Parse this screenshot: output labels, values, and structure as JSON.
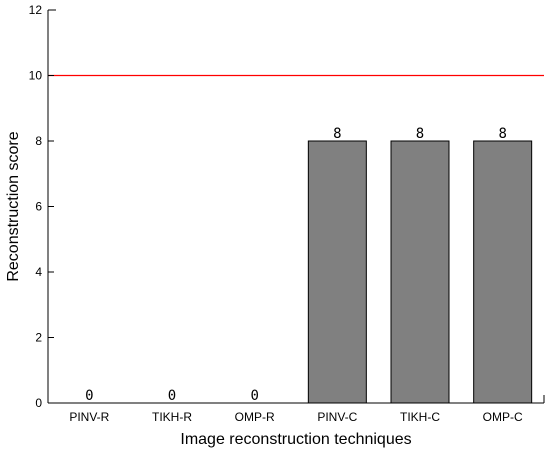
{
  "chart_data": {
    "type": "bar",
    "title": "",
    "xlabel": "Image reconstruction techniques",
    "ylabel": "Reconstruction score",
    "categories": [
      "PINV-R",
      "TIKH-R",
      "OMP-R",
      "PINV-C",
      "TIKH-C",
      "OMP-C"
    ],
    "values": [
      0,
      0,
      0,
      8,
      8,
      8
    ],
    "data_labels": [
      "0",
      "0",
      "0",
      "8",
      "8",
      "8"
    ],
    "ylim": [
      0,
      12
    ],
    "yticks": [
      0,
      2,
      4,
      6,
      8,
      10,
      12
    ],
    "reference_line": {
      "y": 10,
      "color": "#ff0000"
    },
    "bar_color": "#808080",
    "bar_edge_color": "#000000",
    "grid": false,
    "legend": "none"
  }
}
